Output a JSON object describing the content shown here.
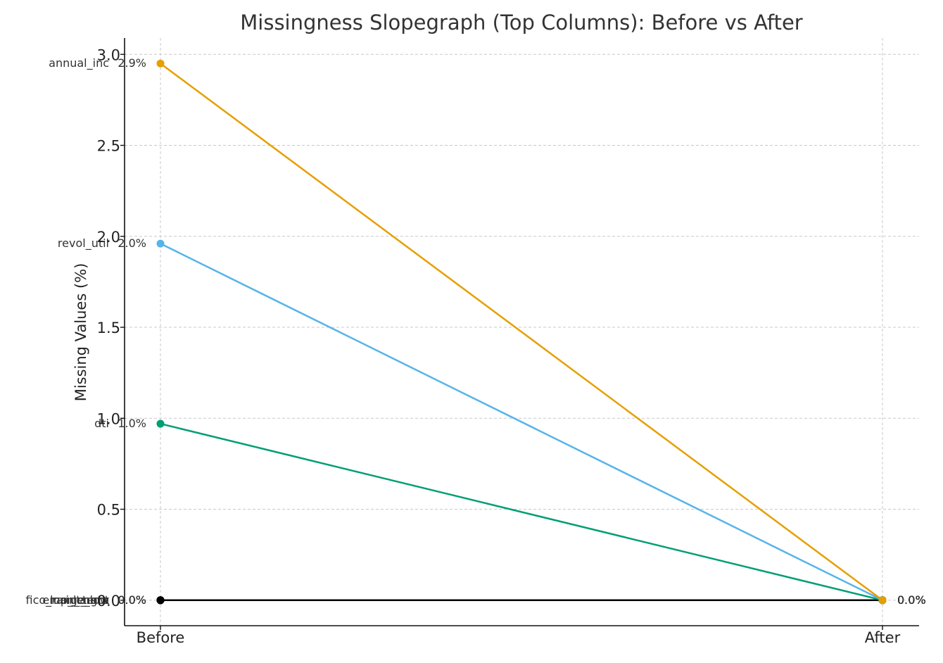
{
  "chart_data": {
    "type": "line",
    "title": "Missingness Slopegraph (Top Columns): Before vs After",
    "xlabel": "",
    "ylabel": "Missing Values (%)",
    "categories": [
      "Before",
      "After"
    ],
    "ylim": [
      -0.14,
      3.09
    ],
    "yticks": [
      0.0,
      0.5,
      1.0,
      1.5,
      2.0,
      2.5,
      3.0
    ],
    "ytick_labels": [
      "0.0",
      "0.5",
      "1.0",
      "1.5",
      "2.0",
      "2.5",
      "3.0"
    ],
    "grid": true,
    "series": [
      {
        "name": "annual_inc",
        "values": [
          2.95,
          0.0
        ],
        "before_label": "2.9%",
        "after_label": "0.0%",
        "color": "#E69F00"
      },
      {
        "name": "revol_util",
        "values": [
          1.96,
          0.0
        ],
        "before_label": "2.0%",
        "after_label": "0.0%",
        "color": "#56B4E9"
      },
      {
        "name": "dti",
        "values": [
          0.97,
          0.0
        ],
        "before_label": "1.0%",
        "after_label": "0.0%",
        "color": "#009E73"
      },
      {
        "name": "fico_range_low",
        "values": [
          0.0,
          0.0
        ],
        "before_label": "0.0%",
        "after_label": "0.0%",
        "color": "#000000"
      },
      {
        "name": "loan_amnt",
        "values": [
          0.0,
          0.0
        ],
        "before_label": "0.0%",
        "after_label": "0.0%",
        "color": "#000000"
      },
      {
        "name": "emp_length",
        "values": [
          0.0,
          0.0
        ],
        "before_label": "0.0%",
        "after_label": "0.0%",
        "color": "#000000"
      },
      {
        "name": "int_rate",
        "values": [
          0.0,
          0.0
        ],
        "before_label": "0.0%",
        "after_label": "0.0%",
        "color": "#000000"
      },
      {
        "name": "term",
        "values": [
          0.0,
          0.0
        ],
        "before_label": "0.0%",
        "after_label": "0.0%",
        "color": "#000000"
      }
    ]
  }
}
